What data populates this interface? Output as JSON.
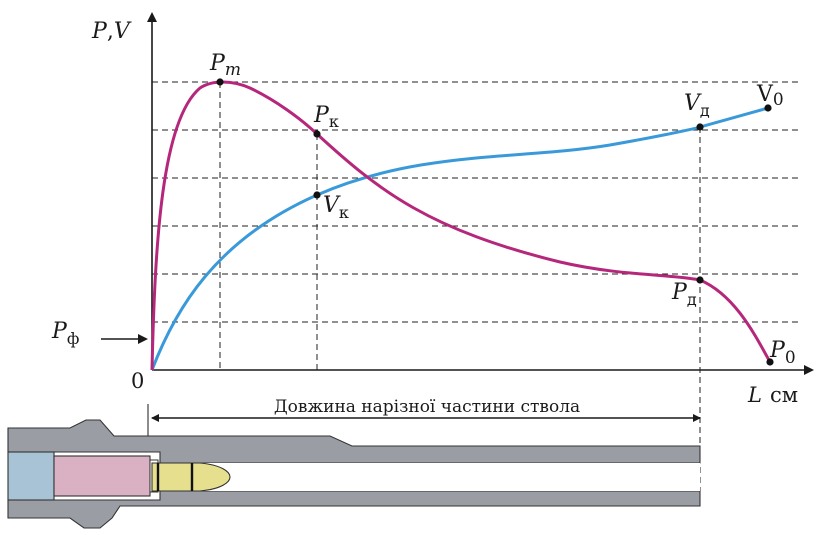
{
  "diagram": {
    "axis": {
      "y_label_p": "P",
      "y_label_sep": ",",
      "y_label_v": "V",
      "x_label_l": "L",
      "x_label_unit": "см",
      "origin": "0"
    },
    "points": {
      "pm_main": "P",
      "pm_sub": "m",
      "pk_main": "P",
      "pk_sub": "к",
      "vk_main": "V",
      "vk_sub": "к",
      "vd_main": "V",
      "vd_sub": "д",
      "v0_main": "V",
      "v0_sub": "0",
      "pd_main": "P",
      "pd_sub": "д",
      "p0_main": "P",
      "p0_sub": "0",
      "pf_main": "P",
      "pf_sub": "ф"
    },
    "barrel_label": "Довжина нарізної частини ствола",
    "colors": {
      "pressure_curve": "#b5277a",
      "velocity_curve": "#3a9ad9",
      "barrel_gray": "#9a9ea4",
      "chamber_blue": "#a9c3d6",
      "case_pink": "#d9b1c3",
      "bullet_yellow": "#e6df8e"
    }
  }
}
